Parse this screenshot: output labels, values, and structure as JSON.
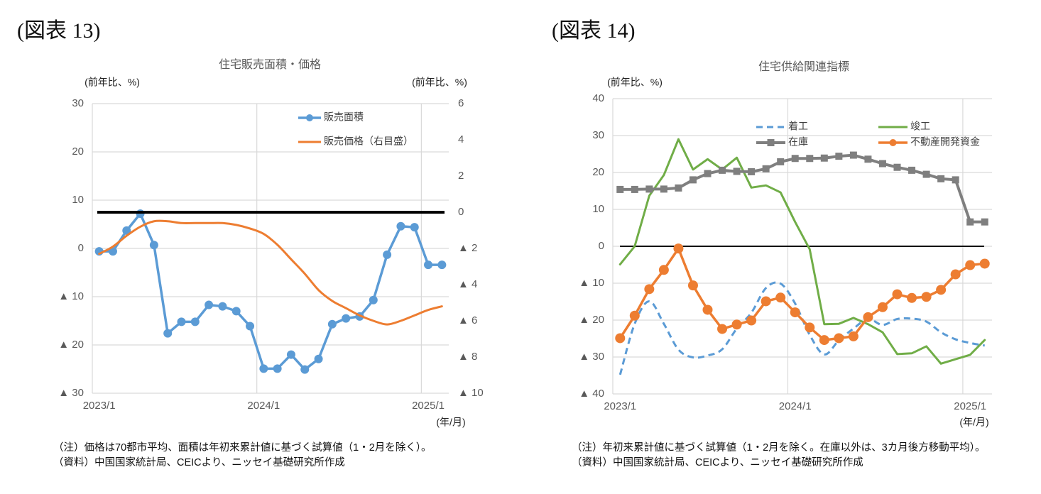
{
  "chart_data": [
    {
      "id": "fig13",
      "figure_label": "(図表 13)",
      "type": "line",
      "title": "住宅販売面積・価格",
      "xlabel": "(年/月)",
      "categories": [
        "2023/1",
        "2023/2",
        "2023/3",
        "2023/4",
        "2023/5",
        "2023/6",
        "2023/7",
        "2023/8",
        "2023/9",
        "2023/10",
        "2023/11",
        "2023/12",
        "2024/1",
        "2024/2",
        "2024/3",
        "2024/4",
        "2024/5",
        "2024/6",
        "2024/7",
        "2024/8",
        "2024/9",
        "2024/10",
        "2024/11",
        "2024/12",
        "2025/1",
        "2025/2"
      ],
      "x_tick_labels": [
        "2023/1",
        "2024/1",
        "2025/1"
      ],
      "y_axes": {
        "left": {
          "unit": "(前年比、%)",
          "range": [
            -30,
            30
          ],
          "ticks": [
            30,
            20,
            10,
            0,
            -10,
            -20,
            -30
          ],
          "tick_labels": [
            "30",
            "20",
            "10",
            "0",
            "▲ 10",
            "▲ 20",
            "▲ 30"
          ]
        },
        "right": {
          "unit": "(前年比、%)",
          "range": [
            -10,
            6
          ],
          "ticks": [
            6,
            4,
            2,
            0,
            -2,
            -4,
            -6,
            -8,
            -10
          ],
          "tick_labels": [
            "6",
            "4",
            "2",
            "0",
            "▲ 2",
            "▲ 4",
            "▲ 6",
            "▲ 8",
            "▲ 10"
          ]
        }
      },
      "series": [
        {
          "name": "販売面積",
          "axis": "left",
          "color": "#5B9BD5",
          "line_style": "solid",
          "marker": "circle",
          "smooth": false,
          "values": [
            -0.6,
            -0.6,
            3.7,
            7.2,
            0.7,
            -17.6,
            -15.2,
            -15.2,
            -11.7,
            -12.0,
            -13.0,
            -16.1,
            -24.9,
            -24.9,
            -22.0,
            -25.1,
            -22.9,
            -15.7,
            -14.5,
            -14.1,
            -10.7,
            -1.3,
            4.6,
            4.4,
            -3.4,
            -3.4
          ]
        },
        {
          "name": "販売価格（右目盛）",
          "axis": "right",
          "color": "#ED7D31",
          "line_style": "solid",
          "marker": "none",
          "smooth": true,
          "values": [
            -2.3,
            -1.9,
            -1.3,
            -0.8,
            -0.5,
            -0.5,
            -0.6,
            -0.6,
            -0.6,
            -0.6,
            -0.7,
            -0.9,
            -1.2,
            -1.8,
            -2.6,
            -3.4,
            -4.3,
            -4.9,
            -5.3,
            -5.7,
            -6.0,
            -6.2,
            -6.0,
            -5.7,
            -5.4,
            -5.2
          ]
        }
      ],
      "reference_line": {
        "axis": "right",
        "value": 0,
        "color": "#000000"
      },
      "grid": true,
      "legend_position": "top-right",
      "notes": [
        "（注）価格は70都市平均、面積は年初来累計値に基づく試算値（1・2月を除く）。",
        "（資料）中国国家統計局、CEICより、ニッセイ基礎研究所作成"
      ]
    },
    {
      "id": "fig14",
      "figure_label": "(図表 14)",
      "type": "line",
      "title": "住宅供給関連指標",
      "xlabel": "(年/月)",
      "categories": [
        "2023/1",
        "2023/2",
        "2023/3",
        "2023/4",
        "2023/5",
        "2023/6",
        "2023/7",
        "2023/8",
        "2023/9",
        "2023/10",
        "2023/11",
        "2023/12",
        "2024/1",
        "2024/2",
        "2024/3",
        "2024/4",
        "2024/5",
        "2024/6",
        "2024/7",
        "2024/8",
        "2024/9",
        "2024/10",
        "2024/11",
        "2024/12",
        "2025/1",
        "2025/2"
      ],
      "x_tick_labels": [
        "2023/1",
        "2024/1",
        "2025/1"
      ],
      "y_axes": {
        "left": {
          "unit": "(前年比、%)",
          "range": [
            -40,
            40
          ],
          "ticks": [
            40,
            30,
            20,
            10,
            0,
            -10,
            -20,
            -30,
            -40
          ],
          "tick_labels": [
            "40",
            "30",
            "20",
            "10",
            "0",
            "▲ 10",
            "▲ 20",
            "▲ 30",
            "▲ 40"
          ]
        }
      },
      "series": [
        {
          "name": "着工",
          "axis": "left",
          "color": "#5B9BD5",
          "line_style": "dashed",
          "marker": "none",
          "smooth": true,
          "values": [
            -34.8,
            -21.0,
            -14.9,
            -21.0,
            -28.0,
            -30.1,
            -29.6,
            -27.9,
            -22.3,
            -18.0,
            -11.3,
            -10.1,
            -15.5,
            -24.0,
            -29.3,
            -25.5,
            -22.3,
            -19.7,
            -21.3,
            -19.7,
            -19.6,
            -20.4,
            -23.3,
            -25.2,
            -26.2,
            -26.9
          ]
        },
        {
          "name": "竣工",
          "axis": "left",
          "color": "#70AD47",
          "line_style": "solid",
          "marker": "none",
          "smooth": false,
          "values": [
            -4.9,
            0.0,
            13.7,
            19.3,
            29.0,
            20.8,
            23.6,
            20.8,
            24.0,
            15.9,
            16.5,
            14.6,
            6.6,
            -0.8,
            -21.1,
            -21.0,
            -19.4,
            -21.1,
            -23.3,
            -29.2,
            -29.0,
            -27.1,
            -31.8,
            -30.6,
            -29.4,
            -25.4
          ]
        },
        {
          "name": "在庫",
          "axis": "left",
          "color": "#7F7F7F",
          "line_style": "solid",
          "marker": "square",
          "smooth": false,
          "values": [
            15.4,
            15.4,
            15.5,
            15.5,
            15.8,
            18.0,
            19.7,
            20.6,
            20.3,
            20.2,
            21.0,
            22.9,
            23.8,
            23.8,
            23.9,
            24.4,
            24.7,
            23.6,
            22.4,
            21.4,
            20.6,
            19.5,
            18.3,
            18.0,
            6.6,
            6.6
          ]
        },
        {
          "name": "不動産開発資金",
          "axis": "left",
          "color": "#ED7D31",
          "line_style": "solid",
          "marker": "circle",
          "smooth": false,
          "values": [
            -24.9,
            -18.8,
            -11.6,
            -6.4,
            -0.6,
            -10.6,
            -17.2,
            -22.4,
            -21.2,
            -20.1,
            -14.9,
            -13.9,
            -17.9,
            -22.0,
            -25.4,
            -24.9,
            -24.4,
            -19.2,
            -16.5,
            -13.0,
            -14.0,
            -13.7,
            -11.8,
            -7.6,
            -5.1,
            -4.7
          ]
        }
      ],
      "reference_line": {
        "axis": "left",
        "value": 0,
        "color": "#000000"
      },
      "grid": true,
      "legend_position": "top",
      "notes": [
        "（注）年初来累計値に基づく試算値（1・2月を除く。在庫以外は、3カ月後方移動平均）。",
        "（資料）中国国家統計局、CEICより、ニッセイ基礎研究所作成"
      ]
    }
  ]
}
